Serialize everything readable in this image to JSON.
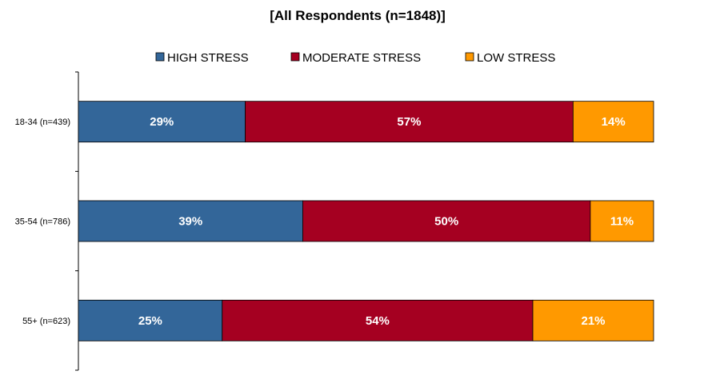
{
  "chart_data": {
    "type": "bar",
    "orientation": "horizontal",
    "stacked": true,
    "title": "[All Respondents (n=1848)]",
    "categories": [
      "18-34 (n=439)",
      "35-54 (n=786)",
      "55+ (n=623)"
    ],
    "series": [
      {
        "name": "HIGH STRESS",
        "values": [
          29,
          39,
          25
        ],
        "labels": [
          "29%",
          "39%",
          "25%"
        ],
        "color": "#336699"
      },
      {
        "name": "MODERATE STRESS",
        "values": [
          57,
          50,
          54
        ],
        "labels": [
          "57%",
          "50%",
          "54%"
        ],
        "color": "#A50021"
      },
      {
        "name": "LOW STRESS",
        "values": [
          14,
          11,
          21
        ],
        "labels": [
          "14%",
          "11%",
          "21%"
        ],
        "color": "#FF9900"
      }
    ],
    "xlim": [
      0,
      100
    ],
    "grid": false,
    "legend_position": "top"
  }
}
